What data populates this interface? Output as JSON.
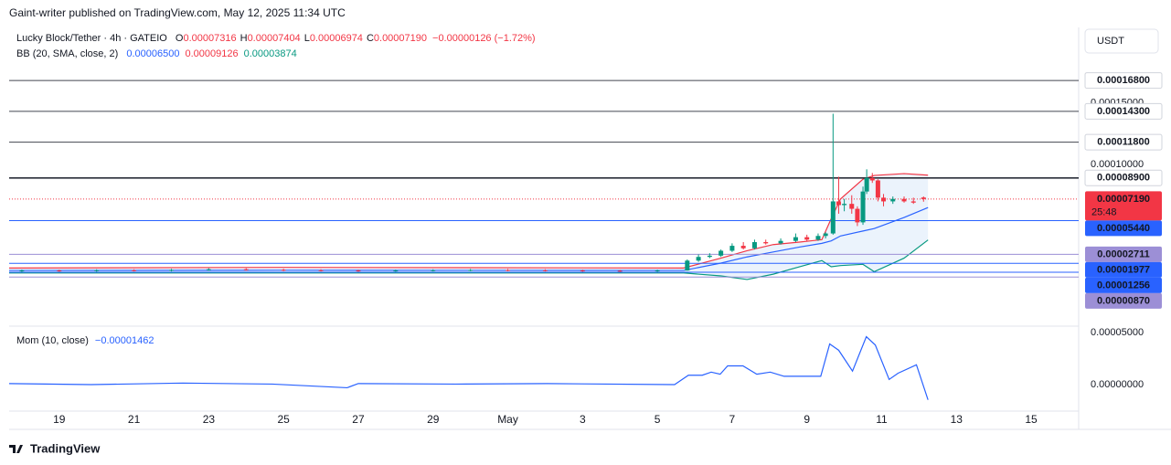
{
  "header": {
    "byline": "Gaint-writer published on TradingView.com, May 12, 2025 11:34 UTC",
    "currency": "USDT",
    "logo": "TradingView"
  },
  "chart_data": [
    {
      "type": "candlestick",
      "title": "Lucky Block/Tether · 4h · GATEIO",
      "ohlc_legend": [
        {
          "label": "O",
          "value": "0.00007316"
        },
        {
          "label": "H",
          "value": "0.00007404"
        },
        {
          "label": "L",
          "value": "0.00006974"
        },
        {
          "label": "C",
          "value": "0.00007190"
        }
      ],
      "change": "−0.00000126 (−1.72%)",
      "x": [
        18,
        19,
        20,
        21,
        22,
        23,
        24,
        25,
        26,
        27,
        28,
        29,
        30,
        31,
        32,
        33,
        34,
        35,
        35.8,
        36.1,
        36.4,
        36.7,
        37.0,
        37.3,
        37.6,
        37.9,
        38.3,
        38.7,
        39.0,
        39.3,
        39.5,
        39.7,
        39.85,
        40.0,
        40.2,
        40.35,
        40.5,
        40.6,
        40.75,
        40.9,
        41.05,
        41.3,
        41.6,
        41.85,
        42.12
      ],
      "open": [
        1.35e-05,
        1.4e-05,
        1.38e-05,
        1.42e-05,
        1.4e-05,
        1.45e-05,
        1.5e-05,
        1.46e-05,
        1.42e-05,
        1.4e-05,
        1.38e-05,
        1.4e-05,
        1.42e-05,
        1.44e-05,
        1.42e-05,
        1.4e-05,
        1.38e-05,
        1.36e-05,
        1.4e-05,
        2.2e-05,
        2.5e-05,
        2.6e-05,
        3e-05,
        3.4e-05,
        3.2e-05,
        3.7e-05,
        3.6e-05,
        3.8e-05,
        4.1e-05,
        3.9e-05,
        4.2e-05,
        4.4e-05,
        7e-05,
        6.7e-05,
        6.8e-05,
        6.4e-05,
        5.3e-05,
        7.8e-05,
        8.9e-05,
        8.7e-05,
        7.3e-05,
        7e-05,
        7.2e-05,
        7e-05,
        7.316e-05
      ],
      "high": [
        1.48e-05,
        1.48e-05,
        1.5e-05,
        1.5e-05,
        1.53e-05,
        1.58e-05,
        1.58e-05,
        1.54e-05,
        1.5e-05,
        1.48e-05,
        1.48e-05,
        1.5e-05,
        1.52e-05,
        1.52e-05,
        1.5e-05,
        1.48e-05,
        1.46e-05,
        1.48e-05,
        2.3e-05,
        2.7e-05,
        2.8e-05,
        3.1e-05,
        3.6e-05,
        3.7e-05,
        3.9e-05,
        3.9e-05,
        4e-05,
        4.4e-05,
        4.3e-05,
        4.4e-05,
        4.5e-05,
        0.000141,
        9e-05,
        7.2e-05,
        7.5e-05,
        6.6e-05,
        8.2e-05,
        9.6e-05,
        9.3e-05,
        8.8e-05,
        7.6e-05,
        7.4e-05,
        7.4e-05,
        7.3e-05,
        7.404e-05
      ],
      "low": [
        1.27e-05,
        1.3e-05,
        1.3e-05,
        1.32e-05,
        1.32e-05,
        1.37e-05,
        1.38e-05,
        1.34e-05,
        1.32e-05,
        1.3e-05,
        1.3e-05,
        1.32e-05,
        1.34e-05,
        1.34e-05,
        1.32e-05,
        1.3e-05,
        1.28e-05,
        1.28e-05,
        1.38e-05,
        2.1e-05,
        2.4e-05,
        2.5e-05,
        2.9e-05,
        3.1e-05,
        3.1e-05,
        3.5e-05,
        3.5e-05,
        3.7e-05,
        3.8e-05,
        3.8e-05,
        4e-05,
        4.3e-05,
        6e-05,
        6.2e-05,
        6e-05,
        5e-05,
        5.1e-05,
        7.6e-05,
        8.5e-05,
        7e-05,
        6.6e-05,
        6.8e-05,
        6.9e-05,
        6.8e-05,
        6.974e-05
      ],
      "close": [
        1.4e-05,
        1.38e-05,
        1.42e-05,
        1.4e-05,
        1.45e-05,
        1.5e-05,
        1.46e-05,
        1.42e-05,
        1.4e-05,
        1.38e-05,
        1.4e-05,
        1.42e-05,
        1.44e-05,
        1.42e-05,
        1.4e-05,
        1.38e-05,
        1.36e-05,
        1.4e-05,
        2.2e-05,
        2.5e-05,
        2.6e-05,
        3e-05,
        3.4e-05,
        3.2e-05,
        3.7e-05,
        3.6e-05,
        3.8e-05,
        4.1e-05,
        3.9e-05,
        4.2e-05,
        4.4e-05,
        7e-05,
        6.7e-05,
        6.8e-05,
        6.4e-05,
        5.3e-05,
        7.8e-05,
        8.9e-05,
        8.7e-05,
        7.3e-05,
        7e-05,
        7.2e-05,
        7e-05,
        6.9e-05,
        7.19e-05
      ],
      "up_color": "#089981",
      "down_color": "#f23645",
      "xlim": [
        17.66,
        46.27
      ],
      "xticks": [
        19,
        21,
        23,
        25,
        27,
        29,
        {
          "value": 31,
          "label": "May"
        },
        {
          "value": 33,
          "label": "3"
        },
        {
          "value": 35,
          "label": "5"
        },
        {
          "value": 37,
          "label": "7"
        },
        {
          "value": 39,
          "label": "9"
        },
        {
          "value": 41,
          "label": "11"
        },
        {
          "value": 43,
          "label": "13"
        },
        {
          "value": 45,
          "label": "15"
        }
      ],
      "ylim": [
        -3.11e-05,
        0.000211
      ],
      "yticks": [
        {
          "value": 0.00015,
          "label": "0.00015000"
        },
        {
          "value": 0.0001,
          "label": "0.00010000"
        }
      ],
      "levels": [
        {
          "value": 0.000168,
          "label": "0.00016800",
          "color": "#434651",
          "tag_style": "outline"
        },
        {
          "value": 0.000143,
          "label": "0.00014300",
          "color": "#434651",
          "tag_style": "outline"
        },
        {
          "value": 0.000118,
          "label": "0.00011800",
          "color": "#434651",
          "tag_style": "outline"
        },
        {
          "value": 8.9e-05,
          "label": "0.00008900",
          "color": "#2a2e39",
          "tag_style": "outline"
        },
        {
          "value": 5.44e-05,
          "label": "0.00005440",
          "color": "#2962ff",
          "tag_style": "filled"
        },
        {
          "value": 2.711e-05,
          "label": "0.00002711",
          "color": "#9c8fd6",
          "tag_style": "filled"
        },
        {
          "value": 1.977e-05,
          "label": "0.00001977",
          "color": "#2962ff",
          "tag_style": "filled"
        },
        {
          "value": 1.256e-05,
          "label": "0.00001256",
          "color": "#2962ff",
          "tag_style": "filled"
        },
        {
          "value": 8.7e-06,
          "label": "0.00000870",
          "color": "#9c8fd6",
          "tag_style": "filled"
        }
      ],
      "last_price": {
        "value": 7.19e-05,
        "label": "0.00007190",
        "countdown": "25:48",
        "color": "#f23645"
      },
      "indicator": {
        "name": "BB (20, SMA, close, 2)",
        "fill": "#e3eefb",
        "x": [
          17.66,
          25,
          35.7,
          36.7,
          37.4,
          38.1,
          38.8,
          39.4,
          39.65,
          39.9,
          40.5,
          40.8,
          41.6,
          42.24
        ],
        "series": [
          {
            "label": "0.00006500",
            "color": "#2962ff",
            "values": [
              1.4e-05,
              1.42e-05,
              1.4e-05,
              2e-05,
              2.5e-05,
              2.9e-05,
              3.3e-05,
              3.6e-05,
              3.8e-05,
              4.2e-05,
              4.6e-05,
              4.8e-05,
              5.7e-05,
              6.5e-05
            ]
          },
          {
            "label": "0.00009126",
            "color": "#f23645",
            "values": [
              1.6e-05,
              1.65e-05,
              1.6e-05,
              2.4e-05,
              3e-05,
              3.5e-05,
              3.7e-05,
              3.9e-05,
              5.6e-05,
              7.2e-05,
              8.8e-05,
              9.1e-05,
              9.25e-05,
              9.126e-05
            ]
          },
          {
            "label": "0.00003874",
            "color": "#089981",
            "values": [
              1.2e-05,
              1.2e-05,
              1.2e-05,
              9.6e-06,
              6.7e-06,
              1.1e-05,
              1.7e-05,
              2.2e-05,
              1.7e-05,
              1.8e-05,
              1.9e-05,
              1.3e-05,
              2.4e-05,
              3.874e-05
            ]
          }
        ]
      }
    },
    {
      "type": "line",
      "title": "Mom (10, close)",
      "last_label": "−0.00001462",
      "color": "#2962ff",
      "x": [
        17.66,
        19.85,
        22.3,
        24.7,
        26.7,
        27,
        29.6,
        32.05,
        35.46,
        35.83,
        36.2,
        36.44,
        36.68,
        36.88,
        37.29,
        37.66,
        38.02,
        38.39,
        38.63,
        39.37,
        39.61,
        39.85,
        40.22,
        40.59,
        40.83,
        41.2,
        41.44,
        41.93,
        42.24
      ],
      "values": [
        1e-06,
        0,
        1.5e-06,
        5e-07,
        -3e-06,
        1e-06,
        5e-07,
        1e-06,
        0,
        9e-06,
        9e-06,
        1.2e-05,
        1e-05,
        1.8e-05,
        1.8e-05,
        1e-05,
        1.2e-05,
        8e-06,
        8e-06,
        8e-06,
        3.9e-05,
        3.3e-05,
        1.3e-05,
        4.6e-05,
        3.8e-05,
        5e-06,
        1.1e-05,
        1.9e-05,
        -1.462e-05
      ],
      "xlim": [
        17.66,
        46.27
      ],
      "ylim": [
        -2.54e-05,
        5.61e-05
      ],
      "yticks": [
        {
          "value": 5e-05,
          "label": "0.00005000"
        },
        {
          "value": 0,
          "label": "0.00000000"
        }
      ]
    }
  ]
}
